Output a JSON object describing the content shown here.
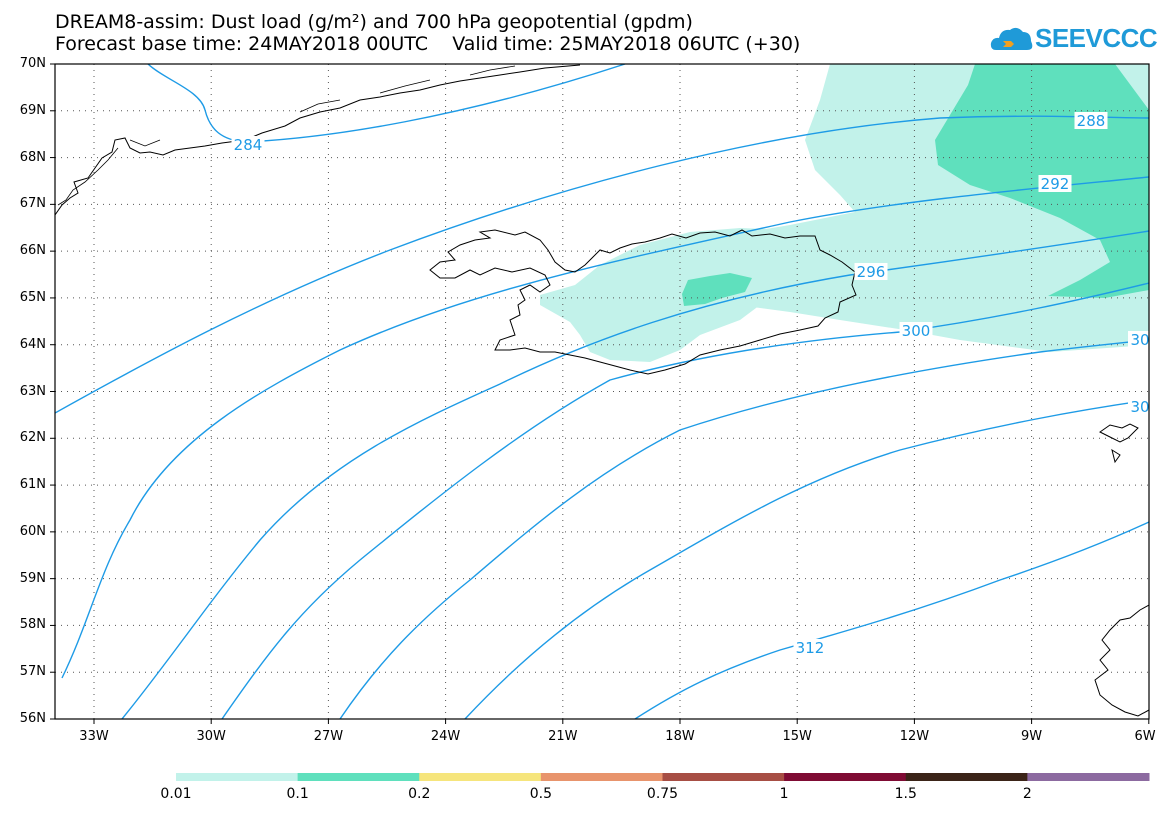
{
  "title_line1": "DREAM8-assim: Dust load (g/m²) and 700 hPa geopotential (gpdm)",
  "title_line2": "Forecast base time: 24MAY2018 00UTC    Valid time: 25MAY2018 06UTC (+30)",
  "logo_text": "SEEVCCC",
  "lat_labels": [
    "70N",
    "69N",
    "68N",
    "67N",
    "66N",
    "65N",
    "64N",
    "63N",
    "62N",
    "61N",
    "60N",
    "59N",
    "58N",
    "57N",
    "56N"
  ],
  "lon_labels": [
    "33W",
    "30W",
    "27W",
    "24W",
    "21W",
    "18W",
    "15W",
    "12W",
    "9W",
    "6W"
  ],
  "contour_labels": [
    "284",
    "288",
    "292",
    "296",
    "300",
    "30",
    "30",
    "312"
  ],
  "colorbar": {
    "labels": [
      "0.01",
      "0.1",
      "0.2",
      "0.5",
      "0.75",
      "1",
      "1.5",
      "2"
    ],
    "colors": [
      "#c2f2ea",
      "#5fe0bd",
      "#f6e57c",
      "#e8946c",
      "#a74e44",
      "#7f0b34",
      "#3b2418",
      "#8c6aa0"
    ]
  },
  "colors": {
    "contour": "#1e9be6",
    "dust_light": "#c2f2ea",
    "dust_medium": "#5fe0bd"
  }
}
